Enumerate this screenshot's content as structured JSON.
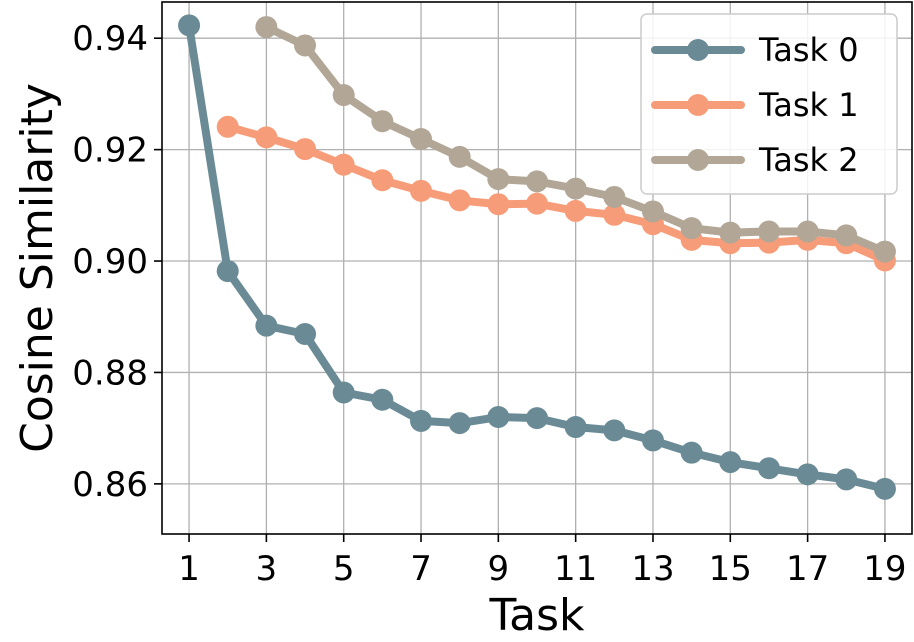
{
  "chart_data": {
    "type": "line",
    "xlabel": "Task",
    "ylabel": "Cosine Similarity",
    "xlim": [
      0.3,
      19.7
    ],
    "ylim": [
      0.851,
      0.9465
    ],
    "xticks": [
      1,
      3,
      5,
      7,
      9,
      11,
      13,
      15,
      17,
      19
    ],
    "yticks": [
      0.86,
      0.88,
      0.9,
      0.92,
      0.94
    ],
    "ytick_labels": [
      "0.86",
      "0.88",
      "0.90",
      "0.92",
      "0.94"
    ],
    "grid": true,
    "legend_position": "top-right",
    "series": [
      {
        "name": "Task 0",
        "color": "#6a8b96",
        "x": [
          1,
          2,
          3,
          4,
          5,
          6,
          7,
          8,
          9,
          10,
          11,
          12,
          13,
          14,
          15,
          16,
          17,
          18,
          19
        ],
        "y": [
          0.9423,
          0.8982,
          0.8884,
          0.8869,
          0.8764,
          0.8751,
          0.8713,
          0.8709,
          0.872,
          0.8718,
          0.8702,
          0.8696,
          0.8678,
          0.8656,
          0.8639,
          0.8628,
          0.8617,
          0.8608,
          0.8591
        ]
      },
      {
        "name": "Task 1",
        "color": "#f79c78",
        "x": [
          2,
          3,
          4,
          5,
          6,
          7,
          8,
          9,
          10,
          11,
          12,
          13,
          14,
          15,
          16,
          17,
          18,
          19
        ],
        "y": [
          0.9241,
          0.9222,
          0.9201,
          0.9173,
          0.9145,
          0.9126,
          0.9109,
          0.9102,
          0.9103,
          0.909,
          0.9083,
          0.9066,
          0.9038,
          0.9032,
          0.9033,
          0.9038,
          0.9032,
          0.9001
        ]
      },
      {
        "name": "Task 2",
        "color": "#b2a696",
        "x": [
          3,
          4,
          5,
          6,
          7,
          8,
          9,
          10,
          11,
          12,
          13,
          14,
          15,
          16,
          17,
          18,
          19
        ],
        "y": [
          0.942,
          0.9387,
          0.9298,
          0.9251,
          0.9219,
          0.9187,
          0.9147,
          0.9143,
          0.913,
          0.9115,
          0.9089,
          0.9059,
          0.9051,
          0.9053,
          0.9053,
          0.9046,
          0.9017
        ]
      }
    ]
  }
}
